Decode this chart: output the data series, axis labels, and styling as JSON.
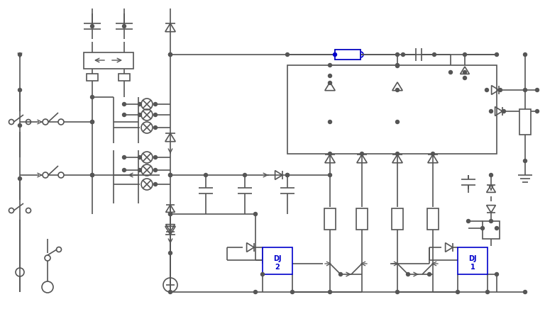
{
  "background": "#ffffff",
  "line_color": "#555555",
  "blue_color": "#0000cc",
  "figsize": [
    7.68,
    4.67
  ],
  "dpi": 100
}
